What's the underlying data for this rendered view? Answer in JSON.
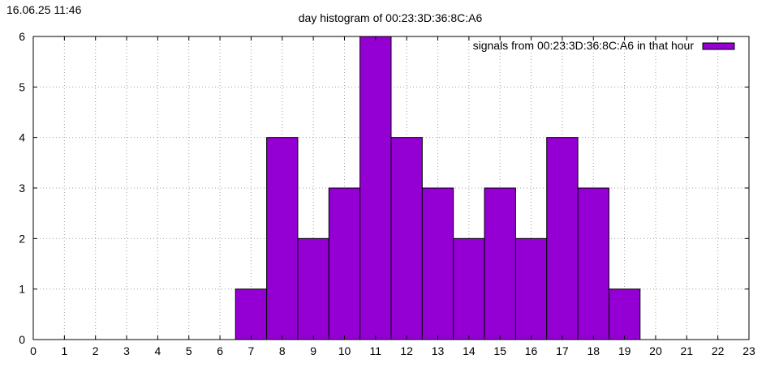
{
  "timestamp": "16.06.25 11:46",
  "chart_data": {
    "type": "bar",
    "title": "day histogram of 00:23:3D:36:8C:A6",
    "xlabel": "",
    "ylabel": "",
    "xlim": [
      0,
      23
    ],
    "ylim": [
      0,
      6
    ],
    "x_ticks": [
      "0",
      "1",
      "2",
      "3",
      "4",
      "5",
      "6",
      "7",
      "8",
      "9",
      "10",
      "11",
      "12",
      "13",
      "14",
      "15",
      "16",
      "17",
      "18",
      "19",
      "20",
      "21",
      "22",
      "23"
    ],
    "y_ticks": [
      "0",
      "1",
      "2",
      "3",
      "4",
      "5",
      "6"
    ],
    "grid": true,
    "legend_position": "top-right",
    "series": [
      {
        "name": "signals from 00:23:3D:36:8C:A6 in that hour",
        "color": "#9400d3",
        "x": [
          7,
          8,
          9,
          10,
          11,
          12,
          13,
          14,
          15,
          16,
          17,
          18,
          19
        ],
        "values": [
          1,
          4,
          2,
          3,
          6,
          4,
          3,
          2,
          3,
          2,
          4,
          3,
          1
        ]
      }
    ]
  }
}
